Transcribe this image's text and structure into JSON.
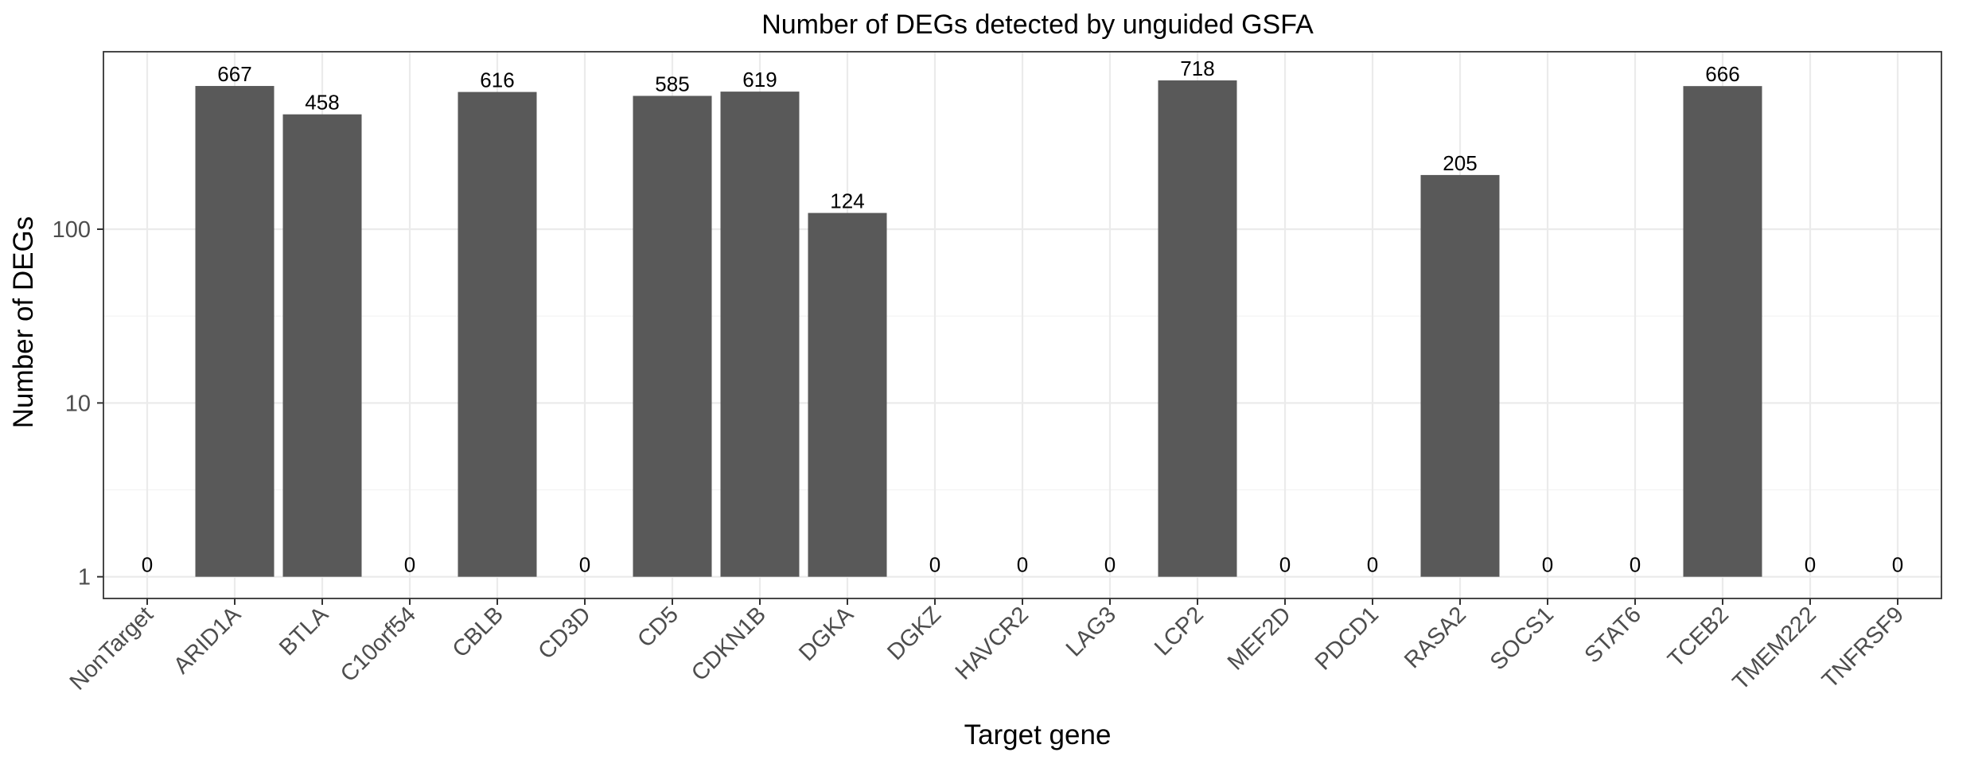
{
  "chart_data": {
    "type": "bar",
    "title": "Number of DEGs detected by unguided GSFA",
    "xlabel": "Target gene",
    "ylabel": "Number of DEGs",
    "yscale": "log10",
    "ylim": [
      0.75,
      1050
    ],
    "yticks": [
      1,
      10,
      100
    ],
    "ytick_labels": [
      "1",
      "10",
      "100"
    ],
    "categories": [
      "NonTarget",
      "ARID1A",
      "BTLA",
      "C10orf54",
      "CBLB",
      "CD3D",
      "CD5",
      "CDKN1B",
      "DGKA",
      "DGKZ",
      "HAVCR2",
      "LAG3",
      "LCP2",
      "MEF2D",
      "PDCD1",
      "RASA2",
      "SOCS1",
      "STAT6",
      "TCEB2",
      "TMEM222",
      "TNFRSF9"
    ],
    "values": [
      0,
      667,
      458,
      0,
      616,
      0,
      585,
      619,
      124,
      0,
      0,
      0,
      718,
      0,
      0,
      205,
      0,
      0,
      666,
      0,
      0
    ],
    "value_labels": [
      "0",
      "667",
      "458",
      "0",
      "616",
      "0",
      "585",
      "619",
      "124",
      "0",
      "0",
      "0",
      "718",
      "0",
      "0",
      "205",
      "0",
      "0",
      "666",
      "0",
      "0"
    ],
    "bar_color": "#595959",
    "grid": true
  }
}
